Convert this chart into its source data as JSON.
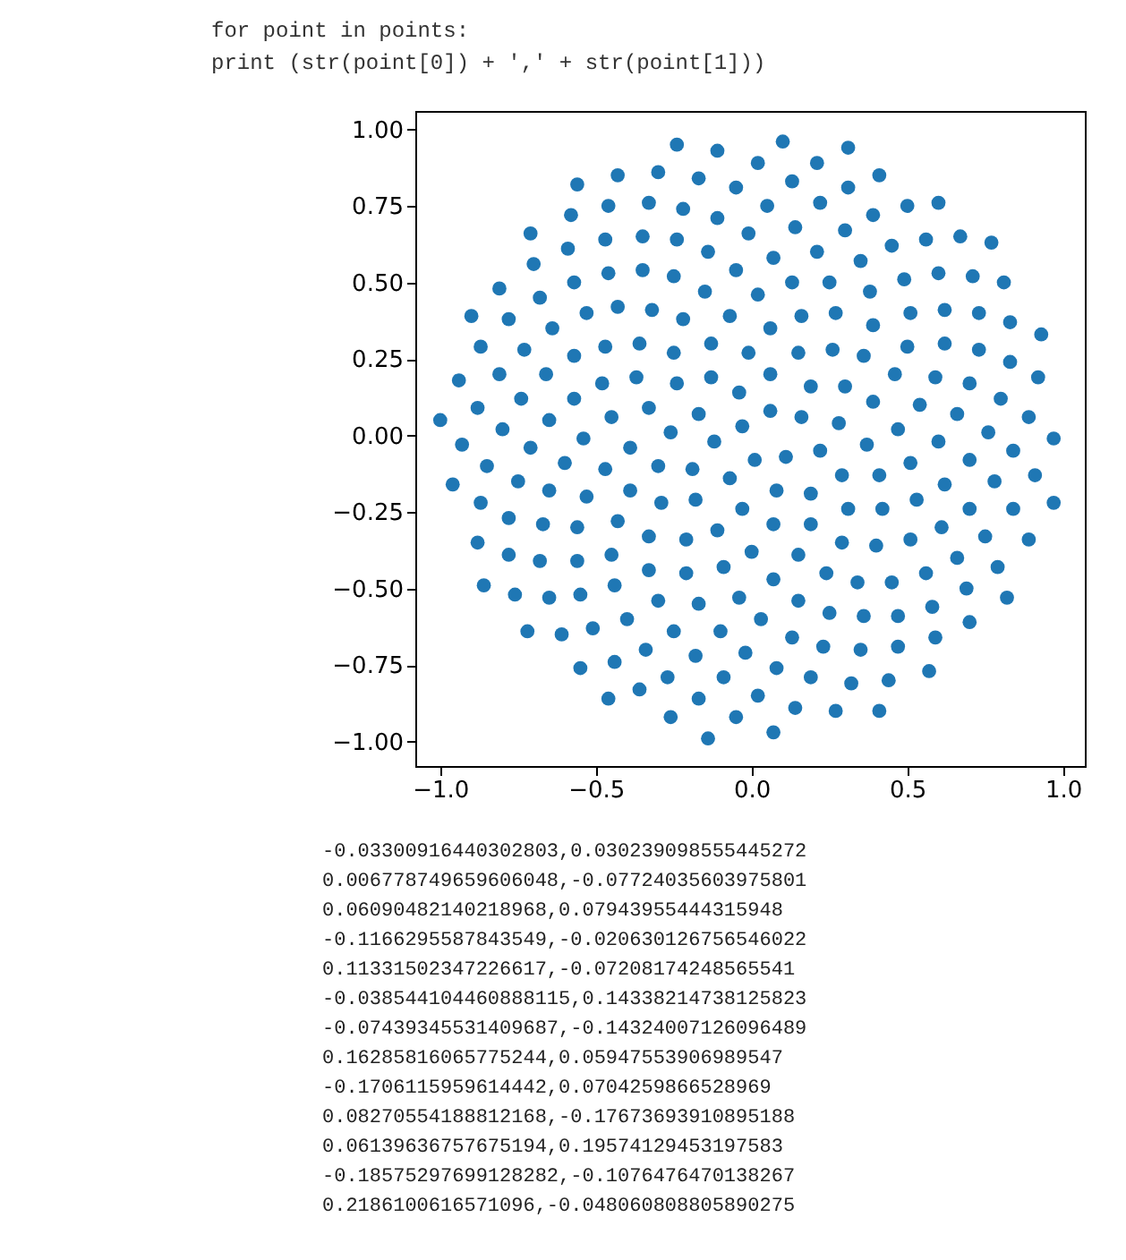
{
  "chart_data": {
    "type": "scatter",
    "title": "for point in points:\n    print (str(point[0]) + ',' + str(point[1]))",
    "x": [
      -0.03,
      0.01,
      0.06,
      -0.12,
      0.11,
      -0.04,
      -0.07,
      0.16,
      -0.17,
      0.08,
      0.06,
      -0.19,
      0.22,
      -0.13,
      -0.03,
      0.19,
      -0.26,
      0.19,
      -0.01,
      -0.18,
      0.28,
      -0.24,
      0.07,
      0.15,
      -0.3,
      0.29,
      -0.13,
      -0.11,
      0.3,
      -0.33,
      0.19,
      0.06,
      -0.29,
      0.37,
      -0.25,
      0.0,
      0.26,
      -0.39,
      0.31,
      -0.07,
      -0.21,
      0.39,
      -0.37,
      0.15,
      0.16,
      -0.39,
      0.41,
      -0.22,
      -0.09,
      0.36,
      -0.45,
      0.29,
      0.02,
      -0.33,
      0.47,
      -0.36,
      0.07,
      0.27,
      -0.47,
      0.42,
      -0.15,
      -0.21,
      0.46,
      -0.48,
      0.24,
      0.13,
      -0.43,
      0.51,
      -0.32,
      -0.04,
      0.39,
      -0.54,
      0.4,
      -0.05,
      -0.33,
      0.54,
      -0.47,
      0.15,
      0.25,
      -0.53,
      0.53,
      -0.25,
      -0.17,
      0.5,
      -0.57,
      0.34,
      0.07,
      -0.45,
      0.6,
      -0.43,
      0.03,
      0.38,
      -0.6,
      0.51,
      -0.14,
      -0.3,
      0.59,
      -0.57,
      0.25,
      0.21,
      -0.56,
      0.62,
      -0.35,
      -0.1,
      0.51,
      -0.65,
      0.45,
      -0.01,
      -0.44,
      0.66,
      -0.53,
      0.13,
      0.35,
      -0.65,
      0.61,
      -0.24,
      -0.25,
      0.62,
      -0.66,
      0.36,
      0.14,
      -0.56,
      0.7,
      -0.46,
      -0.02,
      0.49,
      -0.71,
      0.56,
      -0.11,
      -0.4,
      0.7,
      -0.64,
      0.23,
      0.3,
      -0.67,
      0.7,
      -0.35,
      -0.18,
      0.62,
      -0.74,
      0.47,
      0.05,
      -0.55,
      0.76,
      -0.57,
      0.08,
      0.45,
      -0.75,
      0.66,
      -0.22,
      -0.34,
      0.73,
      -0.73,
      0.35,
      0.22,
      -0.68,
      0.78,
      -0.47,
      -0.09,
      0.6,
      -0.8,
      0.58,
      -0.05,
      -0.51,
      0.8,
      -0.68,
      0.19,
      0.39,
      -0.78,
      0.75,
      -0.33,
      -0.27,
      0.73,
      -0.81,
      0.47,
      0.13,
      -0.65,
      0.84,
      -0.59,
      0.02,
      0.56,
      -0.85,
      0.69,
      -0.17,
      -0.44,
      0.83,
      -0.78,
      0.32,
      0.31,
      -0.78,
      0.84,
      -0.46,
      -0.17,
      0.71,
      -0.88,
      0.59,
      0.02,
      -0.61,
      0.89,
      -0.7,
      0.14,
      0.5,
      -0.87,
      0.79,
      -0.3,
      -0.36,
      0.83,
      -0.87,
      0.44,
      0.21,
      -0.76,
      0.91,
      -0.58,
      -0.05,
      0.67,
      -0.93,
      0.7,
      -0.11,
      -0.55,
      0.92,
      -0.81,
      0.27,
      0.41,
      -0.88,
      0.89,
      -0.43,
      -0.26,
      0.81,
      -0.94,
      0.57,
      0.1,
      -0.72,
      0.97,
      -0.71,
      0.07,
      0.6,
      -0.96,
      0.82,
      -0.24,
      -0.46,
      0.93,
      -0.9,
      0.41,
      0.31,
      -0.86,
      0.97,
      -0.56,
      -0.14,
      0.77,
      -1.0
    ],
    "values": [
      0.03,
      -0.08,
      0.08,
      -0.02,
      -0.07,
      0.14,
      -0.14,
      0.06,
      0.07,
      -0.18,
      0.2,
      -0.11,
      -0.05,
      0.19,
      -0.24,
      0.16,
      0.01,
      -0.19,
      0.27,
      -0.21,
      0.04,
      0.17,
      -0.29,
      0.27,
      -0.1,
      -0.13,
      0.3,
      -0.31,
      0.16,
      0.09,
      -0.29,
      0.35,
      -0.22,
      -0.03,
      0.27,
      -0.38,
      0.28,
      -0.04,
      -0.24,
      0.39,
      -0.34,
      0.11,
      0.19,
      -0.39,
      0.39,
      -0.18,
      -0.13,
      0.38,
      -0.43,
      0.26,
      0.06,
      -0.35,
      0.46,
      -0.33,
      0.02,
      0.3,
      -0.47,
      0.4,
      -0.11,
      -0.24,
      0.47,
      -0.45,
      0.2,
      0.17,
      -0.45,
      0.5,
      -0.28,
      -0.09,
      0.41,
      -0.53,
      0.36,
      -0.01,
      -0.36,
      0.54,
      -0.44,
      0.1,
      0.29,
      -0.54,
      0.5,
      -0.2,
      -0.21,
      0.52,
      -0.55,
      0.29,
      0.12,
      -0.48,
      0.58,
      -0.39,
      -0.02,
      0.42,
      -0.6,
      0.47,
      -0.09,
      -0.34,
      0.6,
      -0.54,
      0.19,
      0.26,
      -0.58,
      0.6,
      -0.3,
      -0.16,
      0.54,
      -0.64,
      0.4,
      0.05,
      -0.48,
      0.66,
      -0.49,
      0.07,
      0.4,
      -0.66,
      0.57,
      -0.18,
      -0.3,
      0.64,
      -0.64,
      0.3,
      0.2,
      -0.59,
      0.68,
      -0.41,
      -0.08,
      0.53,
      -0.71,
      0.51,
      -0.04,
      -0.45,
      0.71,
      -0.6,
      0.17,
      0.35,
      -0.69,
      0.67,
      -0.29,
      -0.24,
      0.65,
      -0.72,
      0.41,
      0.12,
      -0.59,
      0.75,
      -0.52,
      0.01,
      0.5,
      -0.76,
      0.62,
      -0.15,
      -0.4,
      0.74,
      -0.7,
      0.28,
      0.28,
      -0.7,
      0.76,
      -0.41,
      -0.15,
      0.64,
      -0.79,
      0.53,
      0.02,
      -0.56,
      0.81,
      -0.63,
      0.12,
      0.45,
      -0.79,
      0.72,
      -0.27,
      -0.33,
      0.76,
      -0.79,
      0.4,
      0.2,
      -0.69,
      0.83,
      -0.53,
      -0.05,
      0.61,
      -0.85,
      0.64,
      -0.1,
      -0.5,
      0.84,
      -0.74,
      0.24,
      0.38,
      -0.81,
      0.81,
      -0.39,
      -0.24,
      0.75,
      -0.86,
      0.52,
      0.09,
      -0.66,
      0.89,
      -0.65,
      0.06,
      0.56,
      -0.89,
      0.75,
      -0.22,
      -0.43,
      0.86,
      -0.83,
      0.37,
      0.29,
      -0.8,
      0.89,
      -0.52,
      -0.13,
      0.72,
      -0.92,
      0.65,
      -0.03,
      -0.61,
      0.93,
      -0.76,
      0.19,
      0.48,
      -0.9,
      0.85,
      -0.35,
      -0.34,
      0.85,
      -0.92,
      0.5,
      0.18,
      -0.77,
      0.96,
      -0.64,
      -0.01,
      0.66,
      -0.97,
      0.76,
      -0.16,
      -0.53,
      0.95,
      -0.86,
      0.33,
      0.39,
      -0.9,
      0.94,
      -0.49,
      -0.22,
      0.82,
      -0.99,
      0.63,
      0.05
    ],
    "color": "#1f77b4",
    "marker": "circle",
    "xlim": [
      -1.08,
      1.07
    ],
    "ylim": [
      -1.08,
      1.06
    ],
    "xticks": [
      {
        "value": -1.0,
        "label": "−1.0"
      },
      {
        "value": -0.5,
        "label": "−0.5"
      },
      {
        "value": 0.0,
        "label": "0.0"
      },
      {
        "value": 0.5,
        "label": "0.5"
      },
      {
        "value": 1.0,
        "label": "1.0"
      }
    ],
    "yticks": [
      {
        "value": -1.0,
        "label": "−1.00"
      },
      {
        "value": -0.75,
        "label": "−0.75"
      },
      {
        "value": -0.5,
        "label": "−0.50"
      },
      {
        "value": -0.25,
        "label": "−0.25"
      },
      {
        "value": 0.0,
        "label": "0.00"
      },
      {
        "value": 0.25,
        "label": "0.25"
      },
      {
        "value": 0.5,
        "label": "0.50"
      },
      {
        "value": 0.75,
        "label": "0.75"
      },
      {
        "value": 1.0,
        "label": "1.00"
      }
    ],
    "grid": false,
    "annotations": [
      "-0.03300916440302803,0.030239098555445272",
      "0.006778749659606048,-0.07724035603975801",
      "0.06090482140218968,0.07943955444315948",
      "-0.1166295587843549,-0.020630126756546022",
      "0.11331502347226617,-0.07208174248565541",
      "-0.038544104460888115,0.14338214738125823",
      "-0.07439345531409687,-0.14324007126096489",
      "0.16285816065775244,0.05947553906989547",
      "-0.1706115959614442,0.0704259866528969",
      "0.08270554188812168,-0.17673693910895188",
      "0.06139636757675194,0.19574129453197583",
      "-0.18575297699128282,-0.1076476470138267",
      "0.2186100616571096,-0.048060808805890275"
    ]
  }
}
